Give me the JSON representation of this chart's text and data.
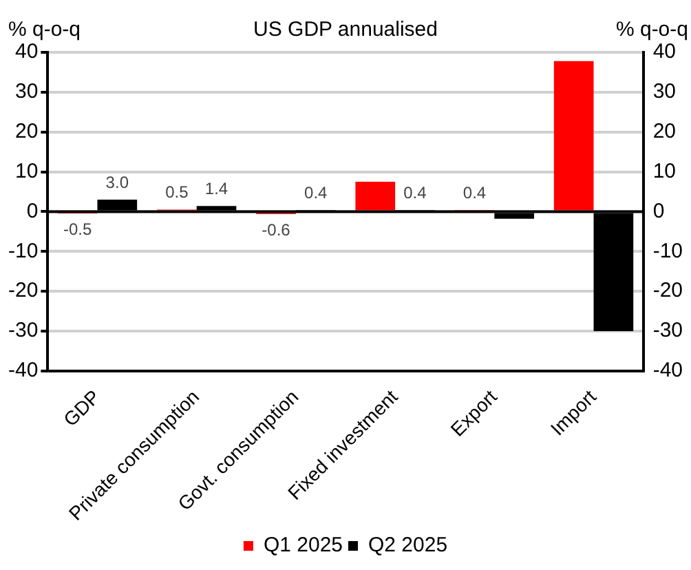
{
  "chart_data": {
    "type": "bar",
    "title": "US GDP annualised",
    "ylabel": "% q-o-q",
    "y2label": "% q-o-q",
    "categories": [
      "GDP",
      "Private consumption",
      "Govt. consumption",
      "Fixed investment",
      "Export",
      "Import"
    ],
    "series": [
      {
        "name": "Q1 2025",
        "color": "#ff0000",
        "values": [
          -0.5,
          0.5,
          -0.6,
          7.5,
          0.4,
          37.8
        ],
        "value_labels": [
          "-0.5",
          "0.5",
          "-0.6",
          null,
          "0.4",
          null
        ]
      },
      {
        "name": "Q2 2025",
        "color": "#000000",
        "values": [
          3.0,
          1.4,
          0.4,
          0.4,
          -1.8,
          -30.0
        ],
        "value_labels": [
          "3.0",
          "1.4",
          "0.4",
          "0.4",
          null,
          null
        ]
      }
    ],
    "ylim": [
      -40,
      40
    ],
    "yticks": [
      -40,
      -30,
      -20,
      -10,
      0,
      10,
      20,
      30,
      40
    ],
    "y2lim": [
      -40,
      40
    ],
    "y2ticks": [
      -40,
      -30,
      -20,
      -10,
      0,
      10,
      20,
      30,
      40
    ],
    "grid": "y",
    "legend": "bottom"
  }
}
